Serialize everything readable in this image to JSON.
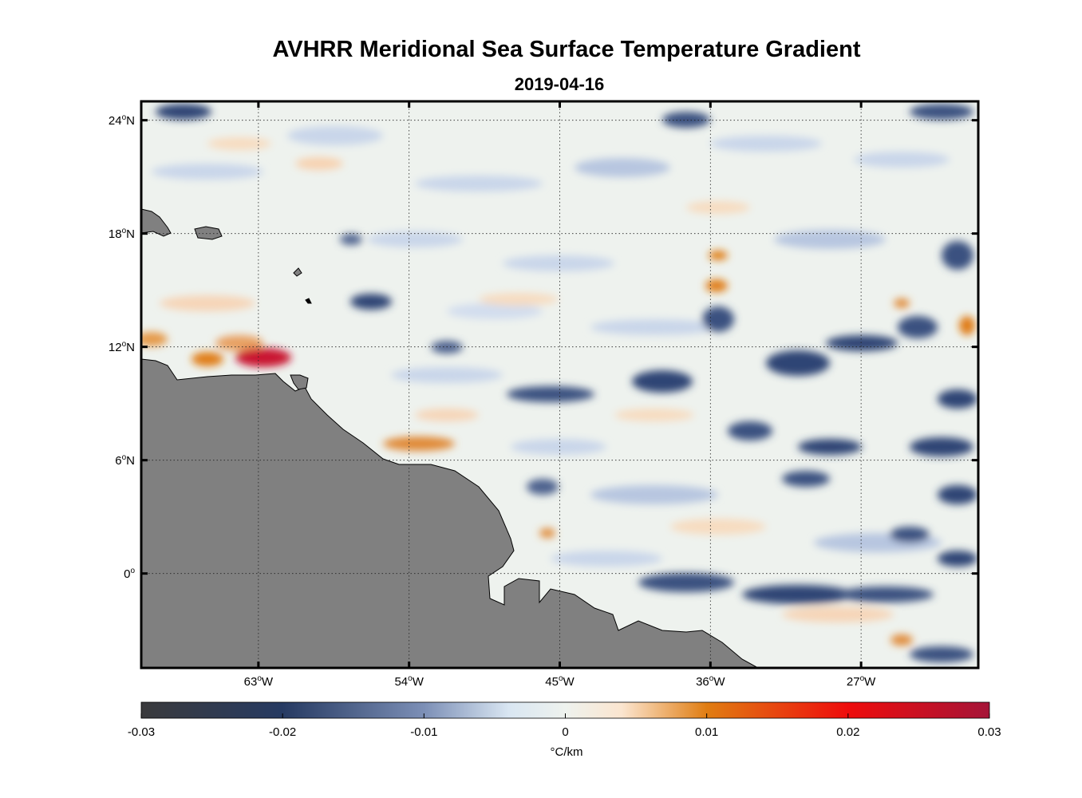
{
  "title": "AVHRR Meridional Sea Surface Temperature Gradient",
  "subtitle": "2019-04-16",
  "map": {
    "lon_range_degE": [
      -70,
      -20
    ],
    "lat_range_degN": [
      -5,
      25
    ],
    "land_color": "#808080",
    "coast_color": "#000000",
    "lat_ticks": [
      {
        "deg": "24",
        "hemi": "N",
        "value": 24
      },
      {
        "deg": "18",
        "hemi": "N",
        "value": 18
      },
      {
        "deg": "12",
        "hemi": "N",
        "value": 12
      },
      {
        "deg": "6",
        "hemi": "N",
        "value": 6
      },
      {
        "deg": "0",
        "hemi": "",
        "value": 0
      }
    ],
    "lon_ticks": [
      {
        "deg": "63",
        "hemi": "W",
        "value": -63
      },
      {
        "deg": "54",
        "hemi": "W",
        "value": -54
      },
      {
        "deg": "45",
        "hemi": "W",
        "value": -45
      },
      {
        "deg": "36",
        "hemi": "W",
        "value": -36
      },
      {
        "deg": "27",
        "hemi": "W",
        "value": -27
      }
    ]
  },
  "colorbar": {
    "unit": "°C/km",
    "ticks": [
      "-0.03",
      "-0.02",
      "-0.01",
      "0",
      "0.01",
      "0.02",
      "0.03"
    ],
    "min": -0.03,
    "max": 0.03,
    "stops": [
      {
        "v": -0.03,
        "c": "#3a3a3c"
      },
      {
        "v": -0.02,
        "c": "#263a62"
      },
      {
        "v": -0.01,
        "c": "#7c8fb6"
      },
      {
        "v": -0.004,
        "c": "#d9e6f2"
      },
      {
        "v": 0,
        "c": "#eef2ee"
      },
      {
        "v": 0.004,
        "c": "#fbe5cf"
      },
      {
        "v": 0.01,
        "c": "#e07d12"
      },
      {
        "v": 0.02,
        "c": "#ee0c0c"
      },
      {
        "v": 0.03,
        "c": "#a51438"
      }
    ]
  }
}
